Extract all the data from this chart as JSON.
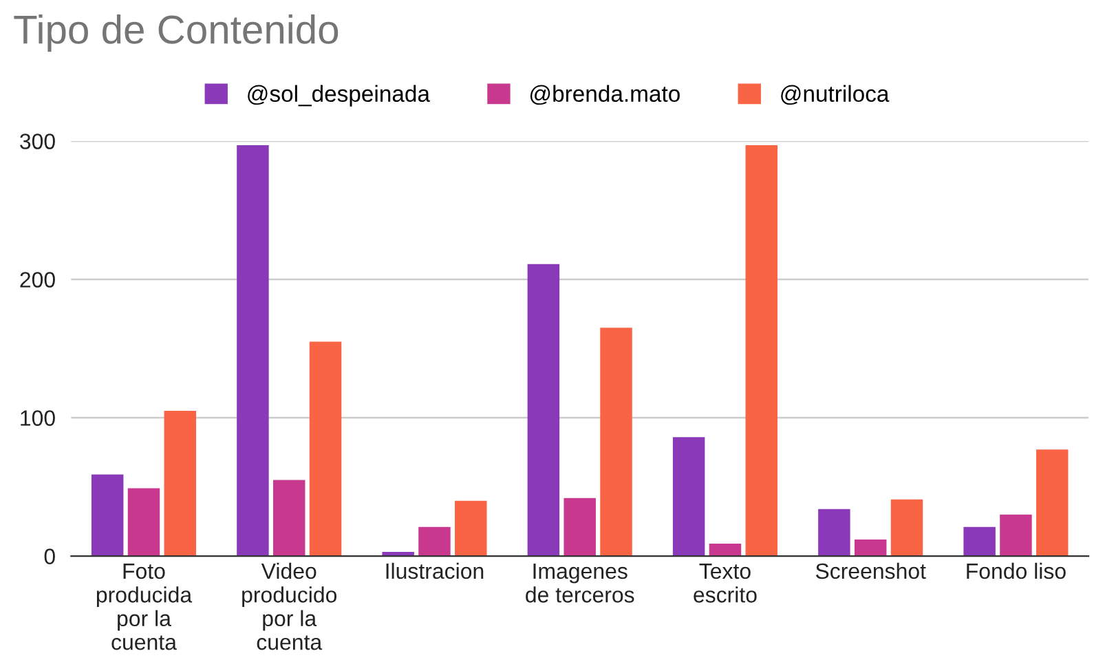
{
  "chart_data": {
    "type": "bar",
    "title": "Tipo de Contenido",
    "categories": [
      "Foto\nproducida\npor la\ncuenta",
      "Video\nproducido\npor la\ncuenta",
      "Ilustracion",
      "Imagenes\nde terceros",
      "Texto\nescrito",
      "Screenshot",
      "Fondo liso"
    ],
    "series": [
      {
        "name": "@sol_despeinada",
        "color": "#8a3ab9",
        "values": [
          59,
          297,
          3,
          211,
          86,
          34,
          21
        ]
      },
      {
        "name": "@brenda.mato",
        "color": "#c8388e",
        "values": [
          49,
          55,
          21,
          42,
          9,
          12,
          30
        ]
      },
      {
        "name": "@nutriloca",
        "color": "#f86444",
        "values": [
          105,
          155,
          40,
          165,
          297,
          41,
          77
        ]
      }
    ],
    "ylim": [
      0,
      300
    ],
    "yticks": [
      0,
      100,
      200,
      300
    ],
    "grid": "y",
    "legend": "top"
  }
}
